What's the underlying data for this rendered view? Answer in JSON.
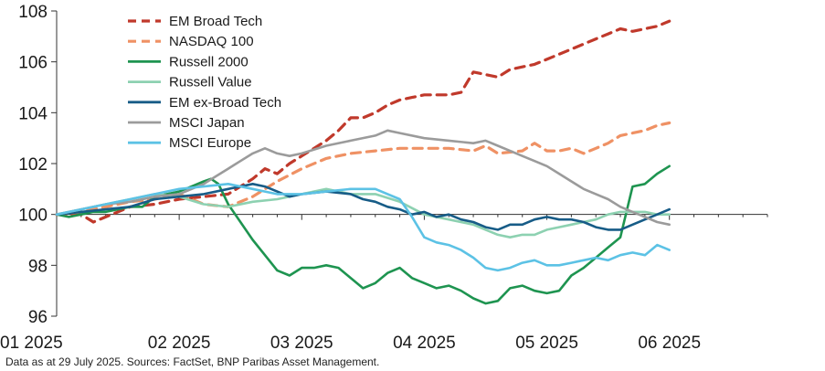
{
  "source_note": "Data as at 29 July 2025.  Sources: FactSet, BNP Paribas Asset Management.",
  "chart_data": {
    "type": "line",
    "title": "",
    "xlabel": "",
    "ylabel": "",
    "ylim": [
      96,
      108
    ],
    "yticks": [
      "96",
      "98",
      "100",
      "102",
      "104",
      "106",
      "108"
    ],
    "xlim": [
      0,
      29
    ],
    "xticks": [
      {
        "label": "01 2025",
        "x": 0
      },
      {
        "label": "02 2025",
        "x": 5
      },
      {
        "label": "03 2025",
        "x": 10
      },
      {
        "label": "04 2025",
        "x": 15
      },
      {
        "label": "05 2025",
        "x": 20
      },
      {
        "label": "06 2025",
        "x": 25
      }
    ],
    "baseline": 100,
    "legend_position": "top-left",
    "grid": false,
    "series": [
      {
        "name": "EM Broad Tech",
        "color": "#c0392b",
        "dash": "dashed",
        "x": [
          0,
          1,
          1.5,
          2,
          2.5,
          3,
          4,
          5,
          6,
          7,
          8,
          8.5,
          9,
          9.5,
          10,
          10.5,
          11,
          11.5,
          12,
          12.5,
          13,
          13.5,
          14,
          14.5,
          15,
          15.5,
          16,
          16.5,
          17,
          17.5,
          18,
          18.5,
          19,
          19.5,
          20,
          20.5,
          21,
          21.5,
          22,
          22.5,
          23,
          23.5,
          24,
          24.5,
          25
        ],
        "y": [
          100,
          100,
          99.7,
          99.9,
          100.1,
          100.3,
          100.4,
          100.6,
          100.7,
          100.8,
          101.4,
          101.8,
          101.6,
          102.0,
          102.3,
          102.6,
          102.9,
          103.3,
          103.8,
          103.8,
          104.0,
          104.3,
          104.5,
          104.6,
          104.7,
          104.7,
          104.7,
          104.8,
          105.6,
          105.5,
          105.4,
          105.7,
          105.8,
          105.9,
          106.1,
          106.3,
          106.5,
          106.7,
          106.9,
          107.1,
          107.3,
          107.2,
          107.3,
          107.4,
          107.6
        ]
      },
      {
        "name": "NASDAQ 100",
        "color": "#ef9164",
        "dash": "dashed",
        "x": [
          0,
          1,
          2,
          3,
          4,
          5,
          5.5,
          6,
          7,
          8,
          8.5,
          9,
          10,
          11,
          12,
          13,
          14,
          15,
          16,
          17,
          17.5,
          18,
          19,
          19.5,
          20,
          20.5,
          21,
          21.5,
          22,
          22.5,
          23,
          23.5,
          24,
          24.5,
          25
        ],
        "y": [
          100,
          100.1,
          100.3,
          100.5,
          100.6,
          100.8,
          100.6,
          100.4,
          100.3,
          100.7,
          101.0,
          101.3,
          101.8,
          102.2,
          102.4,
          102.5,
          102.6,
          102.6,
          102.6,
          102.5,
          102.7,
          102.4,
          102.5,
          102.8,
          102.5,
          102.5,
          102.6,
          102.4,
          102.6,
          102.8,
          103.1,
          103.2,
          103.3,
          103.5,
          103.6
        ]
      },
      {
        "name": "Russell 2000",
        "color": "#1e9450",
        "dash": "solid",
        "x": [
          0,
          0.5,
          1,
          1.5,
          2,
          2.5,
          3,
          3.5,
          4,
          4.5,
          5,
          5.5,
          6,
          6.3,
          6.6,
          7,
          7.5,
          8,
          8.5,
          9,
          9.5,
          10,
          10.5,
          11,
          11.5,
          12,
          12.5,
          13,
          13.5,
          14,
          14.5,
          15,
          15.5,
          16,
          16.5,
          17,
          17.5,
          18,
          18.5,
          19,
          19.5,
          20,
          20.5,
          21,
          21.5,
          22,
          22.5,
          23,
          23.5,
          24,
          24.5,
          25
        ],
        "y": [
          100,
          99.9,
          100,
          100.1,
          100.1,
          100.2,
          100.3,
          100.3,
          100.7,
          100.8,
          100.9,
          101.1,
          101.3,
          101.4,
          101.2,
          100.4,
          99.7,
          99.0,
          98.4,
          97.8,
          97.6,
          97.9,
          97.9,
          98.0,
          97.9,
          97.5,
          97.1,
          97.3,
          97.7,
          97.9,
          97.5,
          97.3,
          97.1,
          97.2,
          97.0,
          96.7,
          96.5,
          96.6,
          97.1,
          97.2,
          97.0,
          96.9,
          97.0,
          97.6,
          97.9,
          98.3,
          98.7,
          99.1,
          101.1,
          101.2,
          101.6,
          101.9
        ]
      },
      {
        "name": "Russell Value",
        "color": "#8dd1b1",
        "dash": "solid",
        "x": [
          0,
          1,
          2,
          3,
          4,
          5,
          6,
          7,
          8,
          9,
          10,
          11,
          12,
          13,
          14,
          15,
          16,
          17,
          17.5,
          18,
          18.5,
          19,
          19.5,
          20,
          20.5,
          21,
          21.5,
          22,
          22.5,
          23,
          23.5,
          24,
          24.5,
          25
        ],
        "y": [
          100,
          100.2,
          100.4,
          100.6,
          100.8,
          100.7,
          100.4,
          100.3,
          100.5,
          100.6,
          100.8,
          101.0,
          100.8,
          100.8,
          100.5,
          100.0,
          99.8,
          99.6,
          99.4,
          99.2,
          99.1,
          99.2,
          99.2,
          99.4,
          99.5,
          99.6,
          99.7,
          99.8,
          100.0,
          100.1,
          100.1,
          100.1,
          100.0,
          100.0
        ]
      },
      {
        "name": "EM ex-Broad Tech",
        "color": "#175c87",
        "dash": "solid",
        "x": [
          0,
          1,
          2,
          3,
          4,
          5,
          6,
          7,
          8,
          8.5,
          9,
          9.5,
          10,
          11,
          12,
          12.5,
          13,
          13.5,
          14,
          14.5,
          15,
          15.5,
          16,
          16.5,
          17,
          17.5,
          18,
          18.5,
          19,
          19.5,
          20,
          20.5,
          21,
          21.5,
          22,
          22.5,
          23,
          23.5,
          24,
          24.5,
          25
        ],
        "y": [
          100,
          100.1,
          100.2,
          100.3,
          100.6,
          100.7,
          100.8,
          101.0,
          101.2,
          101.1,
          100.9,
          100.7,
          100.8,
          100.9,
          100.8,
          100.6,
          100.5,
          100.3,
          100.2,
          100.0,
          100.1,
          99.9,
          100.0,
          99.8,
          99.7,
          99.5,
          99.4,
          99.6,
          99.6,
          99.8,
          99.9,
          99.8,
          99.8,
          99.7,
          99.5,
          99.4,
          99.4,
          99.6,
          99.8,
          100.0,
          100.2
        ]
      },
      {
        "name": "MSCI Japan",
        "color": "#9b9b9b",
        "dash": "solid",
        "x": [
          0,
          1,
          2,
          3,
          4,
          5,
          6,
          6.5,
          7,
          7.5,
          8,
          8.5,
          9,
          9.5,
          10,
          11,
          12,
          13,
          13.5,
          14,
          15,
          16,
          17,
          17.5,
          18,
          18.5,
          19,
          19.5,
          20,
          20.5,
          21,
          21.5,
          22,
          22.5,
          23,
          23.5,
          24,
          24.5,
          25
        ],
        "y": [
          100,
          100.2,
          100.4,
          100.5,
          100.7,
          100.8,
          101.2,
          101.5,
          101.8,
          102.1,
          102.4,
          102.6,
          102.4,
          102.3,
          102.4,
          102.7,
          102.9,
          103.1,
          103.3,
          103.2,
          103.0,
          102.9,
          102.8,
          102.9,
          102.7,
          102.5,
          102.3,
          102.1,
          101.9,
          101.6,
          101.3,
          101.0,
          100.8,
          100.6,
          100.3,
          100.1,
          99.9,
          99.7,
          99.6
        ]
      },
      {
        "name": "MSCI Europe",
        "color": "#5cc2e5",
        "dash": "solid",
        "x": [
          0,
          1,
          2,
          3,
          4,
          5,
          6,
          7,
          8,
          8.5,
          9,
          10,
          11,
          12,
          13,
          14,
          14.5,
          15,
          15.5,
          16,
          16.5,
          17,
          17.5,
          18,
          18.5,
          19,
          19.5,
          20,
          20.5,
          21,
          21.5,
          22,
          22.5,
          23,
          23.5,
          24,
          24.5,
          25
        ],
        "y": [
          100,
          100.2,
          100.4,
          100.6,
          100.8,
          101.0,
          101.1,
          101.2,
          101.0,
          100.9,
          100.8,
          100.8,
          100.9,
          101.0,
          101.0,
          100.6,
          99.9,
          99.1,
          98.9,
          98.8,
          98.6,
          98.3,
          97.9,
          97.8,
          97.9,
          98.1,
          98.2,
          98.0,
          98.0,
          98.1,
          98.2,
          98.3,
          98.2,
          98.4,
          98.5,
          98.4,
          98.8,
          98.6
        ]
      }
    ]
  }
}
